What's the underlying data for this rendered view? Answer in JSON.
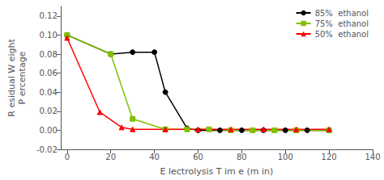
{
  "chart_data": {
    "type": "line",
    "xlabel": "E lectrolysis T im e (m in)",
    "ylabel": "R esidual W eight\nP ercentage",
    "series": [
      {
        "name": "85%  ethanol",
        "color": "#000000",
        "marker": "circle",
        "x": [
          0,
          20,
          30,
          40,
          45,
          55,
          60,
          70,
          80,
          90,
          100,
          110,
          120
        ],
        "values": [
          0.1,
          0.08,
          0.082,
          0.082,
          0.04,
          0.002,
          0.0,
          0.0,
          0.0,
          0.0,
          0.0,
          0.0,
          0.0
        ]
      },
      {
        "name": "75%  ethanol",
        "color": "#80c000",
        "marker": "square",
        "x": [
          0,
          20,
          30,
          45,
          55,
          65,
          75,
          85,
          95,
          105,
          120
        ],
        "values": [
          0.1,
          0.08,
          0.012,
          0.001,
          0.001,
          0.001,
          0.0,
          0.0,
          0.0,
          0.0,
          0.0
        ]
      },
      {
        "name": "50%  ethanol",
        "color": "#ff0000",
        "marker": "triangle",
        "x": [
          0,
          15,
          25,
          30,
          45,
          60,
          75,
          90,
          105,
          120
        ],
        "values": [
          0.097,
          0.019,
          0.003,
          0.001,
          0.001,
          0.001,
          0.001,
          0.001,
          0.001,
          0.001
        ]
      }
    ],
    "xlim": [
      -3,
      140
    ],
    "ylim": [
      -0.02,
      0.13
    ],
    "xticks": [
      0,
      20,
      40,
      60,
      80,
      100,
      120,
      140
    ],
    "yticks": [
      -0.02,
      {
        "value": 0.0,
        "label": "0.00"
      },
      0.02,
      0.04,
      0.06,
      0.08,
      {
        "value": 0.1,
        "label": "0.10"
      },
      0.12
    ],
    "grid": false,
    "legend": "upper right"
  }
}
